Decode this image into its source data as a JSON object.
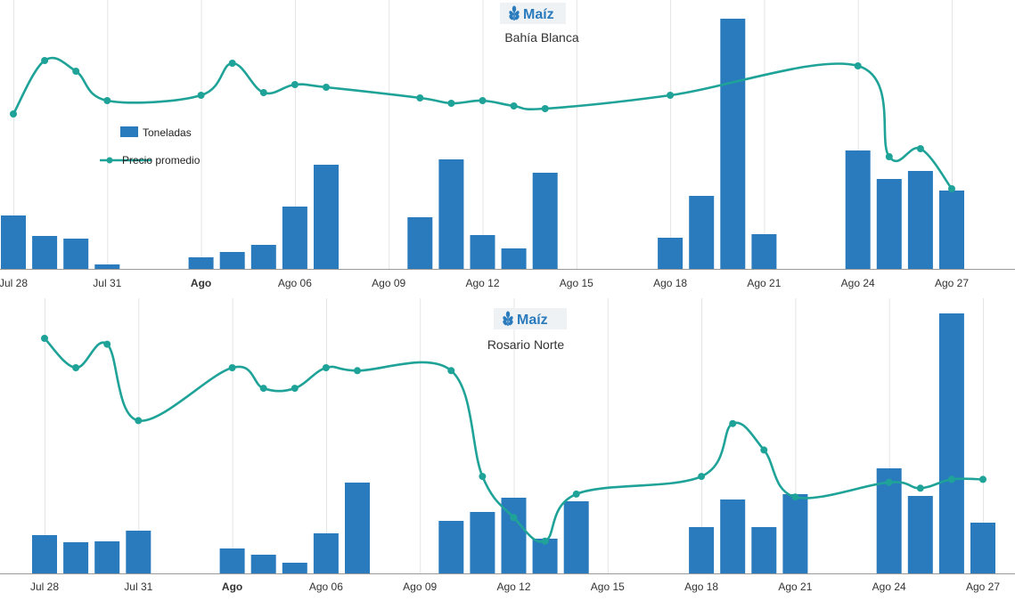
{
  "colors": {
    "bar": "#2a7bbd",
    "line": "#1fa398",
    "badge_bg": "#eef2f4",
    "badge_text": "#2a7bbd",
    "grid": "#e4e4e4",
    "axis": "#999999"
  },
  "legend": {
    "bars_label": "Toneladas",
    "line_label": "Precio promedio"
  },
  "x_ticks": [
    {
      "day": 0,
      "label": "Jul 28",
      "bold": false
    },
    {
      "day": 3,
      "label": "Jul 31",
      "bold": false
    },
    {
      "day": 6,
      "label": "Ago",
      "bold": true
    },
    {
      "day": 9,
      "label": "Ago 06",
      "bold": false
    },
    {
      "day": 12,
      "label": "Ago 09",
      "bold": false
    },
    {
      "day": 15,
      "label": "Ago 12",
      "bold": false
    },
    {
      "day": 18,
      "label": "Ago 15",
      "bold": false
    },
    {
      "day": 21,
      "label": "Ago 18",
      "bold": false
    },
    {
      "day": 24,
      "label": "Ago 21",
      "bold": false
    },
    {
      "day": 27,
      "label": "Ago 24",
      "bold": false
    },
    {
      "day": 30,
      "label": "Ago 27",
      "bold": false
    }
  ],
  "chart_data": [
    {
      "type": "bar",
      "title": "Maíz",
      "subtitle": "Bahía Blanca",
      "badge_icon": "wheat-icon",
      "legend_visible": true,
      "series": [
        {
          "kind": "bar",
          "days": [
            0,
            1,
            2,
            3,
            6,
            7,
            8,
            9,
            10,
            13,
            14,
            15,
            16,
            17,
            21,
            22,
            23,
            24,
            27,
            28,
            29,
            30
          ],
          "values": [
            60,
            37,
            34,
            5,
            13,
            19,
            27,
            70,
            117,
            58,
            123,
            38,
            23,
            108,
            35,
            82,
            281,
            39,
            133,
            101,
            110,
            88
          ]
        },
        {
          "kind": "line",
          "days": [
            0,
            1,
            2,
            3,
            6,
            7,
            8,
            9,
            10,
            13,
            14,
            15,
            16,
            17,
            21,
            27,
            28,
            29,
            30
          ],
          "values": [
            58,
            78,
            74,
            63,
            65,
            77,
            66,
            69,
            68,
            64,
            62,
            63,
            61,
            60,
            65,
            76,
            42,
            45,
            30
          ]
        }
      ]
    },
    {
      "type": "bar",
      "title": "Maíz",
      "subtitle": "Rosario Norte",
      "badge_icon": "wheat-icon",
      "legend_visible": false,
      "series": [
        {
          "kind": "bar",
          "days": [
            0,
            1,
            2,
            3,
            6,
            7,
            8,
            9,
            10,
            13,
            14,
            15,
            16,
            17,
            21,
            22,
            23,
            24,
            27,
            28,
            29,
            30
          ],
          "values": [
            43,
            35,
            36,
            48,
            28,
            21,
            12,
            45,
            102,
            59,
            69,
            85,
            39,
            81,
            52,
            83,
            52,
            89,
            118,
            87,
            292,
            57
          ]
        },
        {
          "kind": "line",
          "days": [
            0,
            1,
            2,
            3,
            6,
            7,
            8,
            9,
            10,
            13,
            14,
            15,
            16,
            17,
            21,
            22,
            23,
            24,
            27,
            28,
            29,
            30
          ],
          "values": [
            80,
            70,
            78,
            52,
            70,
            63,
            63,
            70,
            69,
            69,
            33,
            19,
            11,
            27,
            33,
            51,
            42,
            26,
            31,
            29,
            32,
            32
          ]
        }
      ]
    }
  ]
}
